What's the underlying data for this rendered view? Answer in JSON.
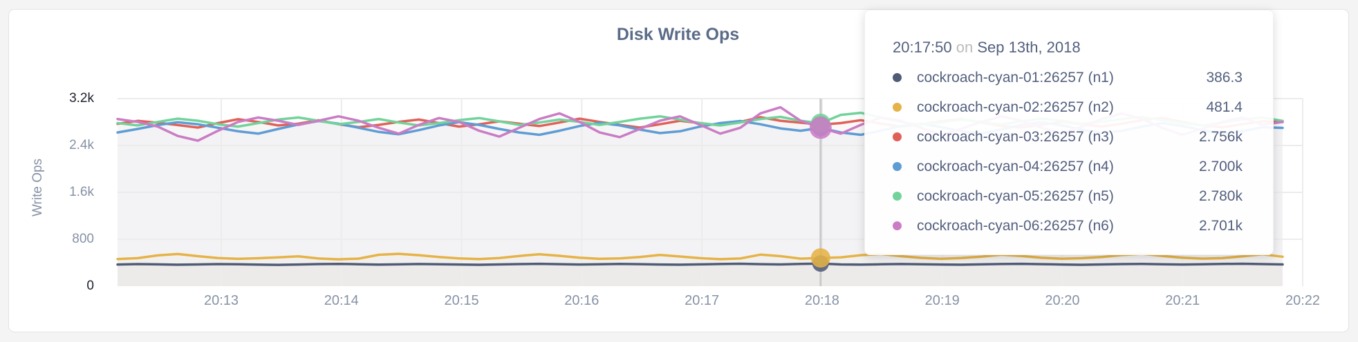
{
  "theme": {
    "page_background": "#f4f4f5",
    "card_background": "#ffffff",
    "card_border": "#e3e3e3",
    "title_color": "#5b6b88",
    "axis_text_color": "#8691a5",
    "axis_text_emphasis_color": "#1c202a",
    "gridline_color": "#ececec",
    "hover_line_color": "#c9c9c9",
    "tooltip_text_color": "#53607e",
    "tooltip_muted_color": "#bcbcbc"
  },
  "chart_data": {
    "type": "line",
    "title": "Disk Write Ops",
    "ylabel": "Write Ops",
    "xlabel": "",
    "ylim": [
      0,
      3200
    ],
    "grid": true,
    "legend_position": "tooltip",
    "yticks": [
      {
        "label": "3.2k",
        "value": 3200,
        "emphasis": true
      },
      {
        "label": "2.4k",
        "value": 2400,
        "emphasis": false
      },
      {
        "label": "1.6k",
        "value": 1600,
        "emphasis": false
      },
      {
        "label": "800",
        "value": 800,
        "emphasis": false
      },
      {
        "label": "0",
        "value": 0,
        "emphasis": true
      }
    ],
    "xticks": [
      "20:13",
      "20:14",
      "20:15",
      "20:16",
      "20:17",
      "20:18",
      "20:19",
      "20:20",
      "20:21",
      "20:22"
    ],
    "x_description": "samples every 10 seconds from ~20:12:00 to ~20:21:50 on Sep 13th, 2018",
    "hover_index": 35,
    "series": [
      {
        "name": "cockroach-cyan-01:26257 (n1)",
        "color": "#505c76",
        "values": [
          370,
          376,
          372,
          366,
          371,
          377,
          373,
          367,
          363,
          370,
          376,
          380,
          374,
          368,
          372,
          378,
          374,
          369,
          365,
          371,
          377,
          381,
          375,
          369,
          373,
          379,
          375,
          370,
          366,
          372,
          378,
          382,
          375,
          371,
          379,
          386.3,
          371,
          367,
          373,
          378,
          374,
          369,
          366,
          372,
          378,
          381,
          375,
          370,
          365,
          371,
          377,
          380,
          374,
          369,
          373,
          379,
          382,
          376,
          371
        ]
      },
      {
        "name": "cockroach-cyan-02:26257 (n2)",
        "color": "#e5b347",
        "values": [
          462,
          478,
          525,
          548,
          512,
          480,
          466,
          476,
          492,
          508,
          472,
          458,
          470,
          535,
          552,
          528,
          498,
          474,
          462,
          480,
          515,
          545,
          518,
          486,
          466,
          474,
          498,
          532,
          506,
          478,
          460,
          472,
          538,
          512,
          470,
          481.4,
          492,
          528,
          548,
          512,
          482,
          466,
          480,
          502,
          536,
          514,
          484,
          468,
          476,
          498,
          530,
          552,
          516,
          486,
          470,
          478,
          508,
          544,
          502
        ]
      },
      {
        "name": "cockroach-cyan-03:26257 (n3)",
        "color": "#df6159",
        "values": [
          2770,
          2820,
          2788,
          2748,
          2706,
          2782,
          2848,
          2802,
          2742,
          2772,
          2832,
          2762,
          2712,
          2752,
          2802,
          2842,
          2782,
          2722,
          2762,
          2812,
          2772,
          2732,
          2792,
          2858,
          2802,
          2752,
          2706,
          2762,
          2822,
          2782,
          2742,
          2802,
          2882,
          2822,
          2790,
          2756,
          2782,
          2832,
          2772,
          2722,
          2762,
          2812,
          2852,
          2792,
          2732,
          2706,
          2752,
          2802,
          2762,
          2722,
          2772,
          2832,
          2872,
          2802,
          2742,
          2708,
          2762,
          2812,
          2800
        ]
      },
      {
        "name": "cockroach-cyan-04:26257 (n4)",
        "color": "#5e9cd4",
        "values": [
          2622,
          2682,
          2748,
          2798,
          2762,
          2702,
          2642,
          2602,
          2682,
          2758,
          2818,
          2772,
          2702,
          2632,
          2592,
          2662,
          2742,
          2798,
          2752,
          2682,
          2622,
          2582,
          2652,
          2732,
          2788,
          2742,
          2672,
          2612,
          2642,
          2722,
          2782,
          2818,
          2762,
          2692,
          2652,
          2700,
          2622,
          2582,
          2652,
          2732,
          2772,
          2712,
          2642,
          2602,
          2672,
          2752,
          2798,
          2742,
          2672,
          2612,
          2652,
          2722,
          2782,
          2732,
          2662,
          2602,
          2642,
          2712,
          2700
        ]
      },
      {
        "name": "cockroach-cyan-05:26257 (n5)",
        "color": "#71d39b",
        "values": [
          2782,
          2742,
          2802,
          2858,
          2822,
          2762,
          2722,
          2782,
          2842,
          2878,
          2822,
          2762,
          2802,
          2852,
          2792,
          2742,
          2782,
          2832,
          2868,
          2812,
          2752,
          2792,
          2842,
          2802,
          2752,
          2802,
          2858,
          2898,
          2842,
          2782,
          2742,
          2792,
          2852,
          2888,
          2822,
          2780,
          2922,
          2958,
          2878,
          2802,
          2752,
          2792,
          2842,
          2802,
          2762,
          2812,
          2858,
          2822,
          2772,
          2802,
          2852,
          2888,
          2832,
          2782,
          2742,
          2792,
          2842,
          2878,
          2820
        ]
      },
      {
        "name": "cockroach-cyan-06:26257 (n6)",
        "color": "#ca7cc4",
        "values": [
          2852,
          2802,
          2722,
          2562,
          2482,
          2652,
          2802,
          2878,
          2822,
          2752,
          2822,
          2898,
          2822,
          2702,
          2602,
          2752,
          2868,
          2802,
          2652,
          2552,
          2702,
          2852,
          2948,
          2802,
          2622,
          2542,
          2682,
          2822,
          2898,
          2752,
          2602,
          2702,
          2948,
          3052,
          2822,
          2701,
          2602,
          2752,
          2878,
          2822,
          2702,
          2582,
          2682,
          2802,
          2898,
          2822,
          2702,
          2602,
          2722,
          2852,
          2948,
          2852,
          2702,
          2582,
          2682,
          2802,
          2878,
          2752,
          2802
        ]
      }
    ]
  },
  "tooltip": {
    "time": "20:17:50",
    "conjunction": "on",
    "date": "Sep 13th, 2018",
    "rows": [
      {
        "label": "cockroach-cyan-01:26257 (n1)",
        "value": "386.3",
        "color": "#505c76"
      },
      {
        "label": "cockroach-cyan-02:26257 (n2)",
        "value": "481.4",
        "color": "#e5b347"
      },
      {
        "label": "cockroach-cyan-03:26257 (n3)",
        "value": "2.756k",
        "color": "#df6159"
      },
      {
        "label": "cockroach-cyan-04:26257 (n4)",
        "value": "2.700k",
        "color": "#5e9cd4"
      },
      {
        "label": "cockroach-cyan-05:26257 (n5)",
        "value": "2.780k",
        "color": "#71d39b"
      },
      {
        "label": "cockroach-cyan-06:26257 (n6)",
        "value": "2.701k",
        "color": "#ca7cc4"
      }
    ]
  }
}
